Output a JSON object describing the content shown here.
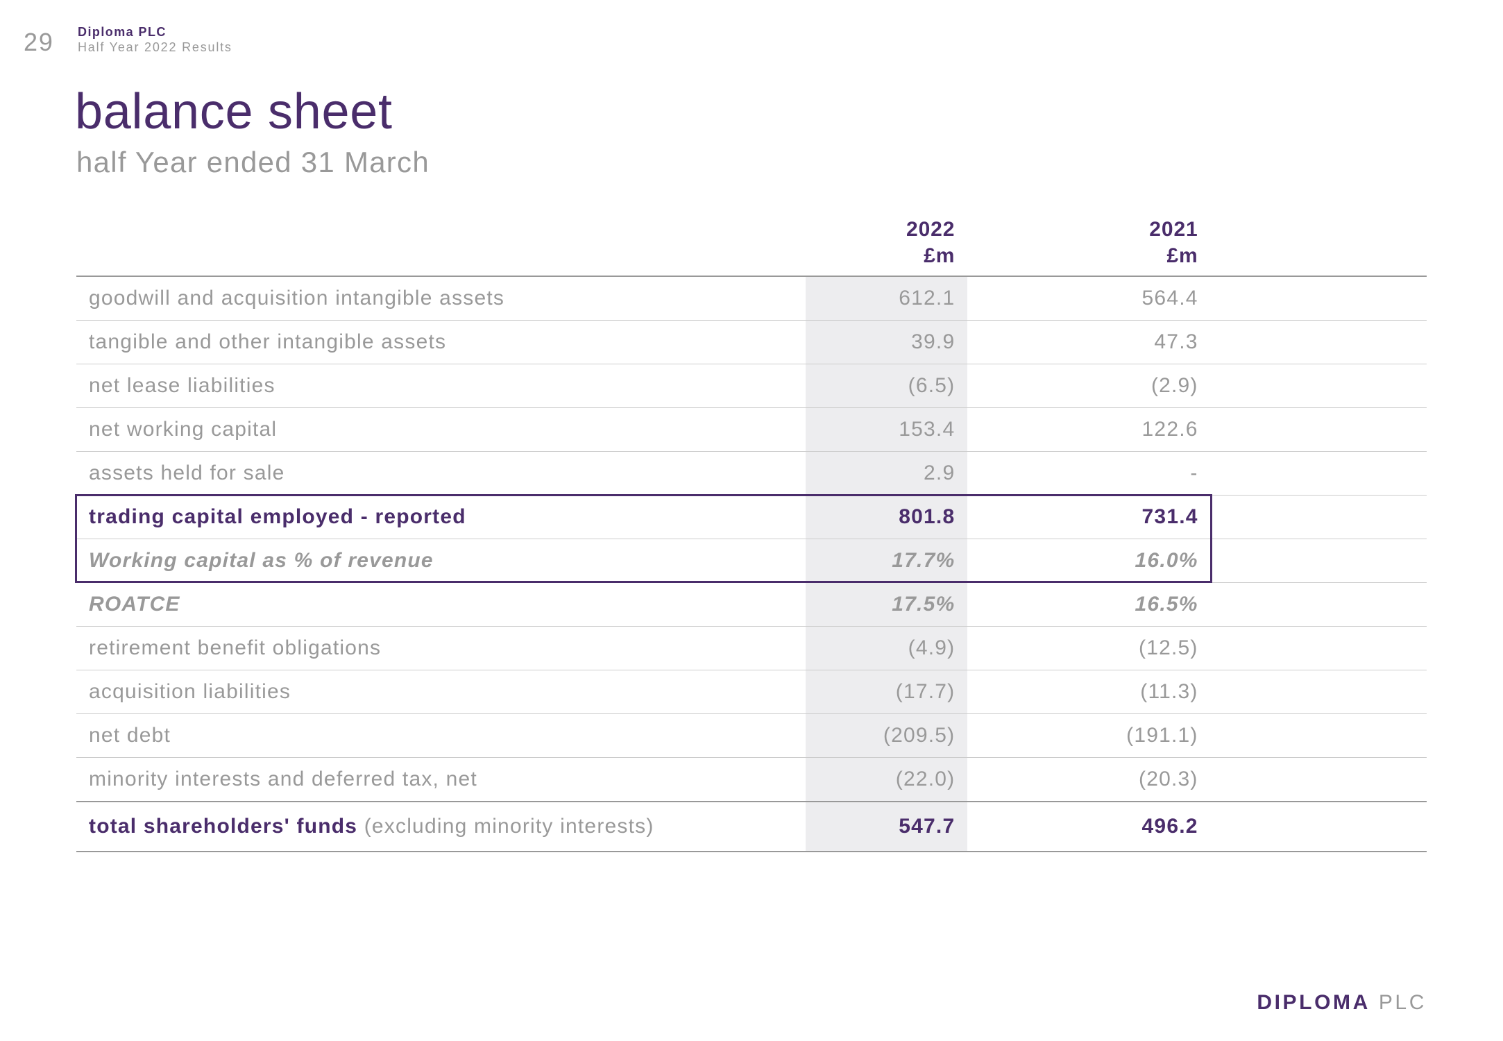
{
  "page_number": "29",
  "header": {
    "company": "Diploma PLC",
    "subtitle": "Half Year 2022 Results"
  },
  "title": "balance sheet",
  "subtitle": "half Year ended 31 March",
  "table": {
    "columns": {
      "current": {
        "year": "2022",
        "unit": "£m"
      },
      "prior": {
        "year": "2021",
        "unit": "£m"
      }
    },
    "highlight_color": "#4a2d6b",
    "current_col_bg": "#ededef",
    "rows": [
      {
        "label": "goodwill and acquisition intangible assets",
        "current": "612.1",
        "prior": "564.4",
        "style": "normal"
      },
      {
        "label": "tangible and other intangible assets",
        "current": "39.9",
        "prior": "47.3",
        "style": "normal"
      },
      {
        "label": "net lease liabilities",
        "current": "(6.5)",
        "prior": "(2.9)",
        "style": "normal"
      },
      {
        "label": "net working capital",
        "current": "153.4",
        "prior": "122.6",
        "style": "normal"
      },
      {
        "label": "assets held for sale",
        "current": "2.9",
        "prior": "-",
        "style": "normal"
      },
      {
        "label": "trading capital employed - reported",
        "current": "801.8",
        "prior": "731.4",
        "style": "bold",
        "highlight": true
      },
      {
        "label": "Working capital as % of revenue",
        "current": "17.7%",
        "prior": "16.0%",
        "style": "italic",
        "highlight": true
      },
      {
        "label": "ROATCE",
        "current": "17.5%",
        "prior": "16.5%",
        "style": "italic"
      },
      {
        "label": "retirement benefit obligations",
        "current": "(4.9)",
        "prior": "(12.5)",
        "style": "normal"
      },
      {
        "label": "acquisition liabilities",
        "current": "(17.7)",
        "prior": "(11.3)",
        "style": "normal"
      },
      {
        "label": "net debt",
        "current": "(209.5)",
        "prior": "(191.1)",
        "style": "normal"
      },
      {
        "label": "minority interests and deferred tax, net",
        "current": "(22.0)",
        "prior": "(20.3)",
        "style": "normal"
      }
    ],
    "total": {
      "label_bold": "total shareholders' funds",
      "label_light": " (excluding minority interests)",
      "current": "547.7",
      "prior": "496.2"
    }
  },
  "footer": {
    "brand": "DIPLOMA",
    "suffix": " PLC"
  },
  "colors": {
    "brand": "#4a2d6b",
    "muted": "#999999",
    "rule": "#cccccc",
    "col_bg": "#ededef",
    "bg": "#ffffff"
  },
  "typography": {
    "title_fontsize": 72,
    "subtitle_fontsize": 42,
    "body_fontsize": 30,
    "header_fontsize": 30
  }
}
